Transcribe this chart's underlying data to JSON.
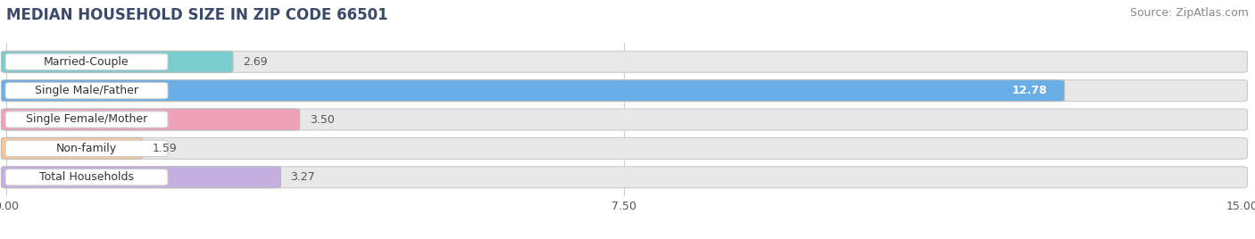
{
  "title": "MEDIAN HOUSEHOLD SIZE IN ZIP CODE 66501",
  "source": "Source: ZipAtlas.com",
  "categories": [
    "Married-Couple",
    "Single Male/Father",
    "Single Female/Mother",
    "Non-family",
    "Total Households"
  ],
  "values": [
    2.69,
    12.78,
    3.5,
    1.59,
    3.27
  ],
  "bar_colors": [
    "#78cece",
    "#6aaee8",
    "#f0a0b8",
    "#f5c896",
    "#c4b0e0"
  ],
  "value_inside": [
    false,
    true,
    false,
    false,
    false
  ],
  "xlim": [
    0,
    15.0
  ],
  "xticks": [
    0.0,
    7.5,
    15.0
  ],
  "xtick_labels": [
    "0.00",
    "7.50",
    "15.00"
  ],
  "background_color": "#ffffff",
  "bar_background": "#e8e8e8",
  "title_color": "#3a4a6b",
  "title_fontsize": 12,
  "source_fontsize": 9,
  "label_fontsize": 9,
  "value_fontsize": 9,
  "tick_fontsize": 9
}
